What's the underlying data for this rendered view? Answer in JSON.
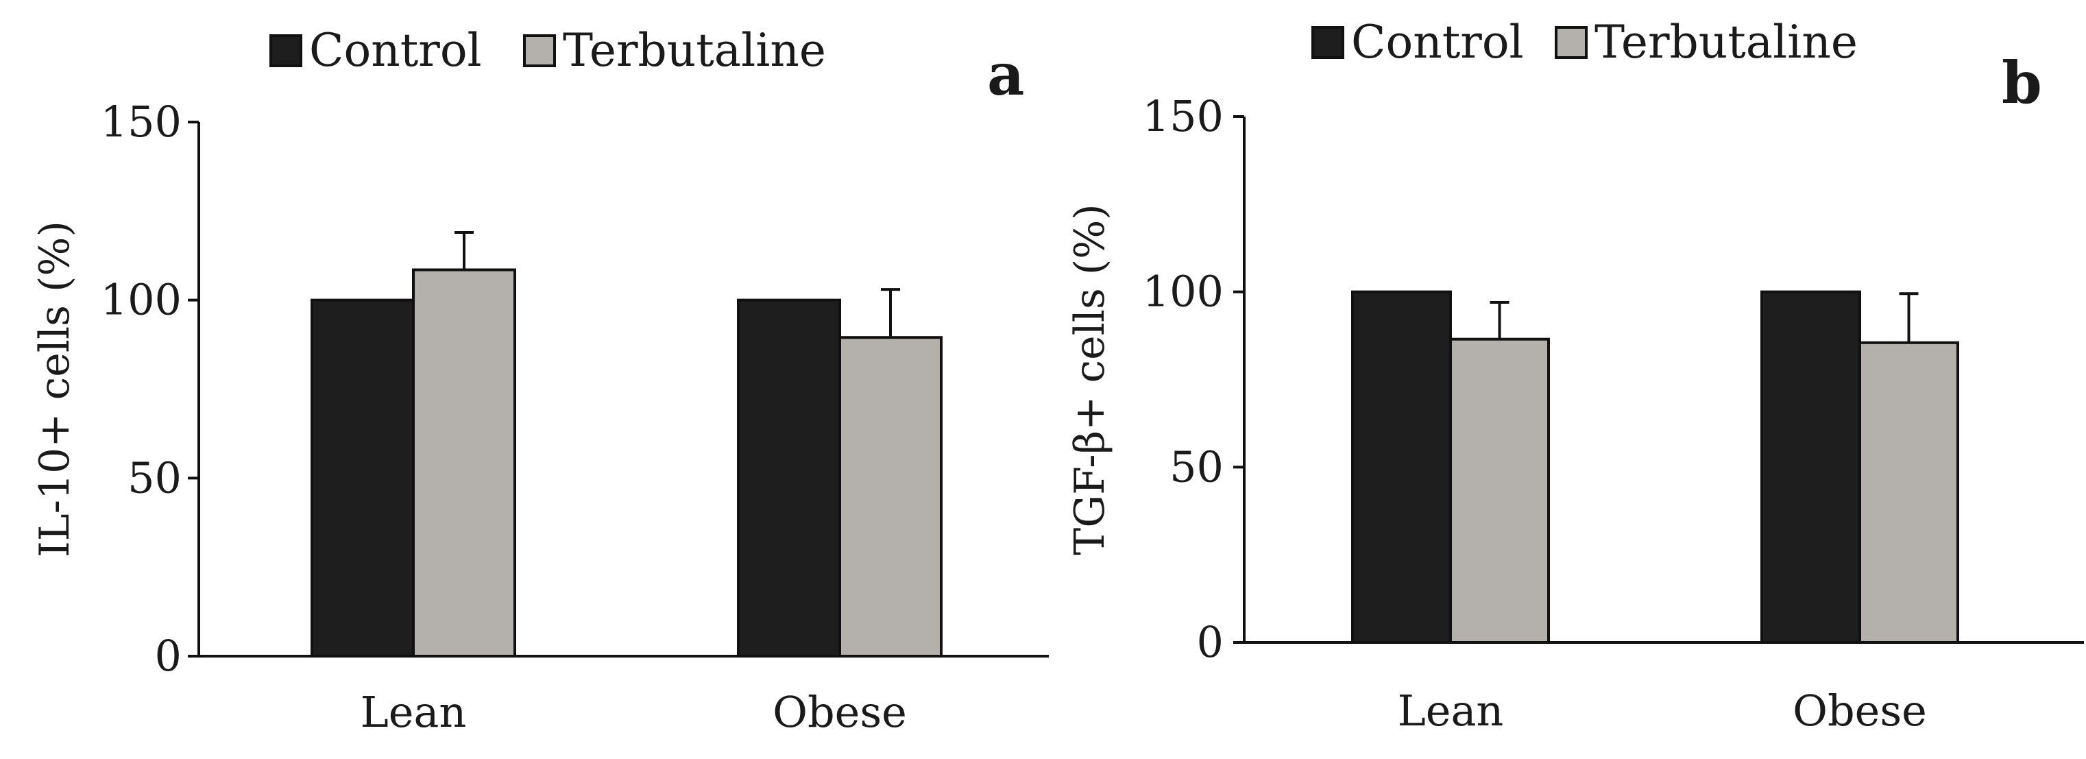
{
  "chart_data": [
    {
      "type": "bar",
      "panel_label": "a",
      "categories": [
        "Lean",
        "Obese"
      ],
      "series": [
        {
          "name": "Control",
          "values": [
            100,
            100
          ],
          "errors": [
            0,
            0
          ],
          "color": "#1e1e1e"
        },
        {
          "name": "Terbutaline",
          "values": [
            108.5,
            89.5
          ],
          "errors": [
            10.5,
            13.5
          ],
          "color": "#b4b0ab"
        }
      ],
      "yticks": [
        0,
        50,
        100,
        150
      ],
      "ylim": [
        0,
        150
      ],
      "ylabel": "IL-10+ cells (%)",
      "xlabel": "",
      "legend": "top",
      "grid": false
    },
    {
      "type": "bar",
      "panel_label": "b",
      "categories": [
        "Lean",
        "Obese"
      ],
      "series": [
        {
          "name": "Control",
          "values": [
            100,
            100
          ],
          "errors": [
            0,
            0
          ],
          "color": "#1e1e1e"
        },
        {
          "name": "Terbutaline",
          "values": [
            86.5,
            85.5
          ],
          "errors": [
            10.5,
            14
          ],
          "color": "#b4b0ab"
        }
      ],
      "yticks": [
        0,
        50,
        100,
        150
      ],
      "ylim": [
        0,
        150
      ],
      "ylabel": "TGF-β+ cells (%)",
      "xlabel": "",
      "legend": "top",
      "grid": false
    }
  ]
}
